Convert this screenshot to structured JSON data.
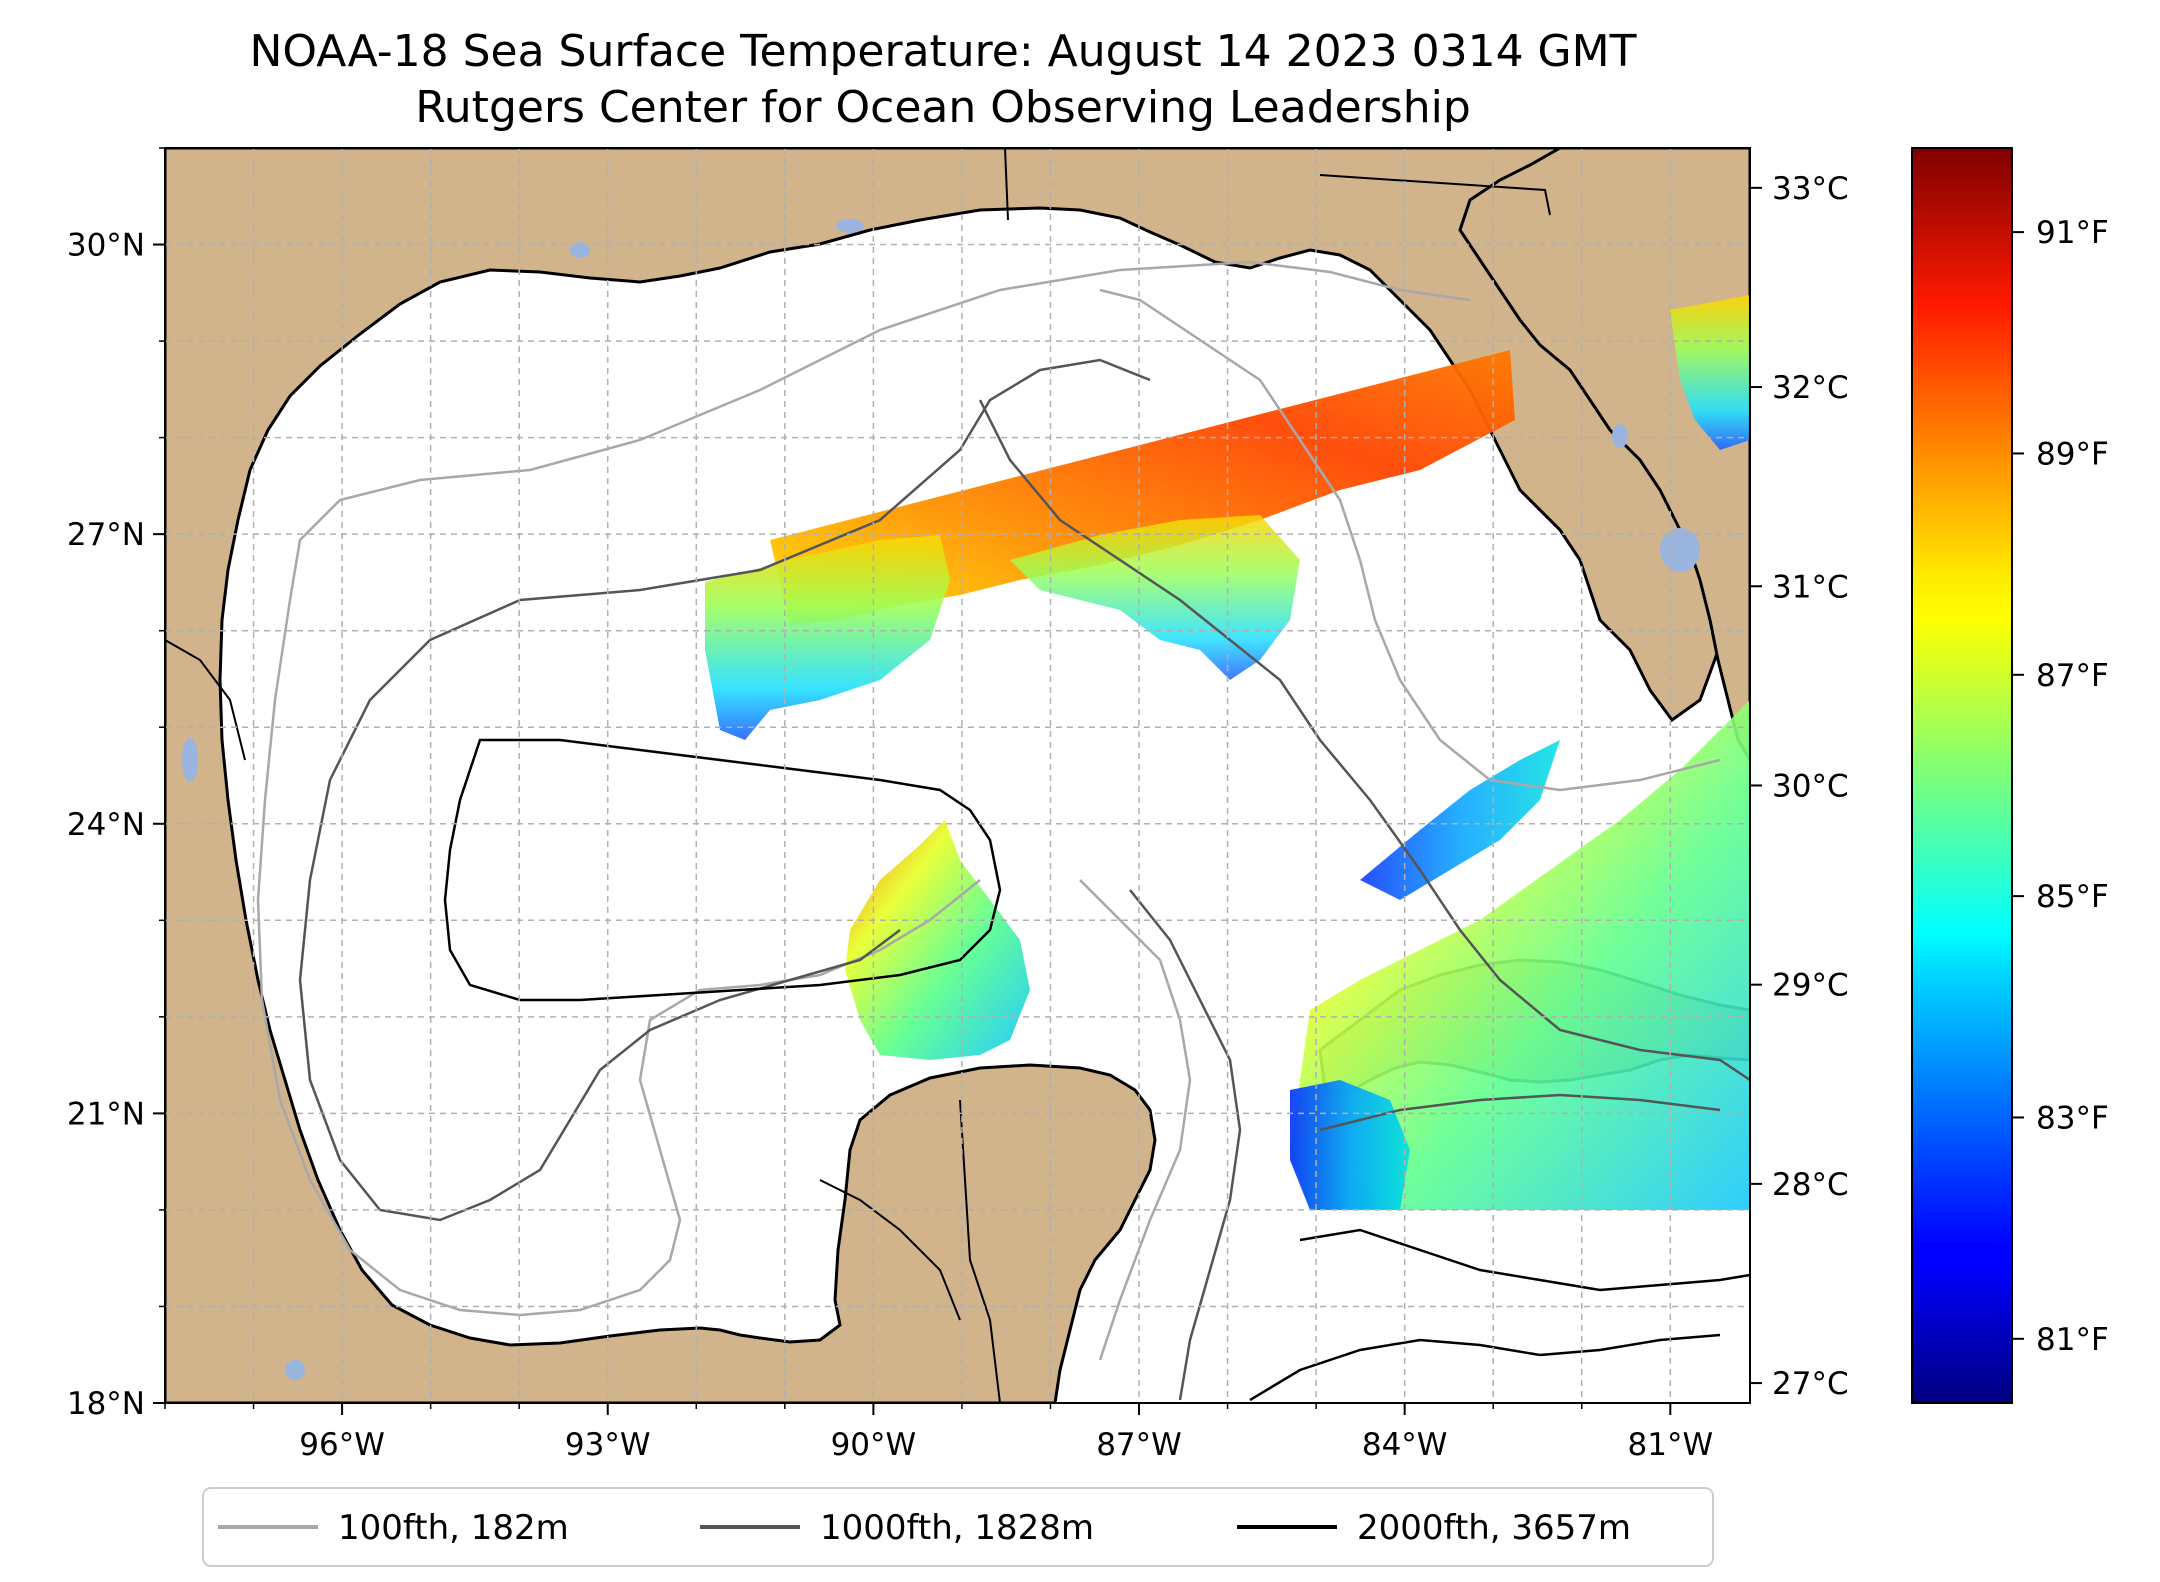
{
  "title": {
    "line1": "NOAA-18 Sea Surface Temperature: August 14 2023 0314 GMT",
    "line2": "Rutgers Center for Ocean Observing Leadership"
  },
  "colors": {
    "land": "#d2b48c",
    "ocean": "#ffffff",
    "lakes": "#9ab4e0",
    "coastline": "#000000",
    "grid": "#b0b0b0",
    "contour_100fth": "#a8a8a8",
    "contour_1000fth": "#555555",
    "contour_2000fth": "#000000",
    "colormap": "jet"
  },
  "map": {
    "lon_range": [
      -98,
      -80.1
    ],
    "lat_range": [
      18,
      31
    ],
    "lon_ticks": [
      {
        "value": -96,
        "label": "96°W"
      },
      {
        "value": -93,
        "label": "93°W"
      },
      {
        "value": -90,
        "label": "90°W"
      },
      {
        "value": -87,
        "label": "87°W"
      },
      {
        "value": -84,
        "label": "84°W"
      },
      {
        "value": -81,
        "label": "81°W"
      }
    ],
    "lat_ticks": [
      {
        "value": 30,
        "label": "30°N"
      },
      {
        "value": 27,
        "label": "27°N"
      },
      {
        "value": 24,
        "label": "24°N"
      },
      {
        "value": 21,
        "label": "21°N"
      },
      {
        "value": 18,
        "label": "18°N"
      }
    ],
    "gridlines": "dashed, every 1°"
  },
  "legend": {
    "items": [
      {
        "label": "100fth, 182m",
        "color": "#a8a8a8"
      },
      {
        "label": "1000fth, 1828m",
        "color": "#555555"
      },
      {
        "label": "2000fth, 3657m",
        "color": "#000000"
      }
    ],
    "placement": "bottom-center"
  },
  "colorbar": {
    "colormap": "jet",
    "celsius_range": [
      26.9,
      33.2
    ],
    "celsius_ticks": [
      {
        "value": 27,
        "label": "27°C"
      },
      {
        "value": 28,
        "label": "28°C"
      },
      {
        "value": 29,
        "label": "29°C"
      },
      {
        "value": 30,
        "label": "30°C"
      },
      {
        "value": 31,
        "label": "31°C"
      },
      {
        "value": 32,
        "label": "32°C"
      },
      {
        "value": 33,
        "label": "33°C"
      }
    ],
    "fahrenheit_ticks": [
      {
        "value": 81,
        "label": "81°F"
      },
      {
        "value": 83,
        "label": "83°F"
      },
      {
        "value": 85,
        "label": "85°F"
      },
      {
        "value": 87,
        "label": "87°F"
      },
      {
        "value": 89,
        "label": "89°F"
      },
      {
        "value": 91,
        "label": "91°F"
      }
    ]
  }
}
